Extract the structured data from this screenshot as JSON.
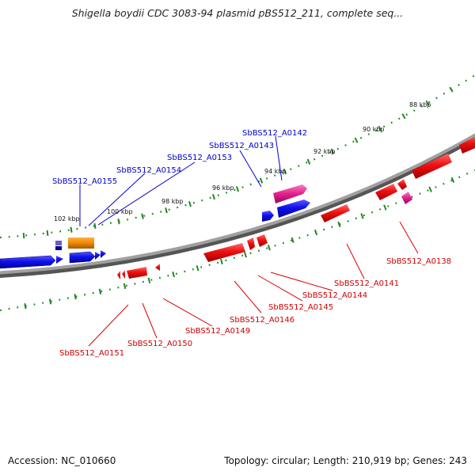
{
  "title": "Shigella boydii CDC 3083-94 plasmid pBS512_211, complete seq...",
  "footer": {
    "accession": "Accession: NC_010660",
    "topology": "Topology: circular; Length: 210,919 bp; Genes: 243"
  },
  "colors": {
    "forward_cds": "#1010ee",
    "reverse_cds": "#ee1010",
    "highlight_forward": "#e0208a",
    "highlight_orange": "#ee8800",
    "backbone": "#888888",
    "tick": "#228822"
  },
  "kbp_labels": [
    "88 kbp",
    "90 kbp",
    "92 kbp",
    "94 kbp",
    "96 kbp",
    "98 kbp",
    "100 kbp",
    "102 kbp"
  ],
  "forward_genes": [
    "SbBS512_A0142",
    "SbBS512_A0143",
    "SbBS512_A0153",
    "SbBS512_A0154",
    "SbBS512_A0155"
  ],
  "reverse_genes": [
    "SbBS512_A0138",
    "SbBS512_A0141",
    "SbBS512_A0144",
    "SbBS512_A0145",
    "SbBS512_A0146",
    "SbBS512_A0149",
    "SbBS512_A0150",
    "SbBS512_A0151"
  ]
}
